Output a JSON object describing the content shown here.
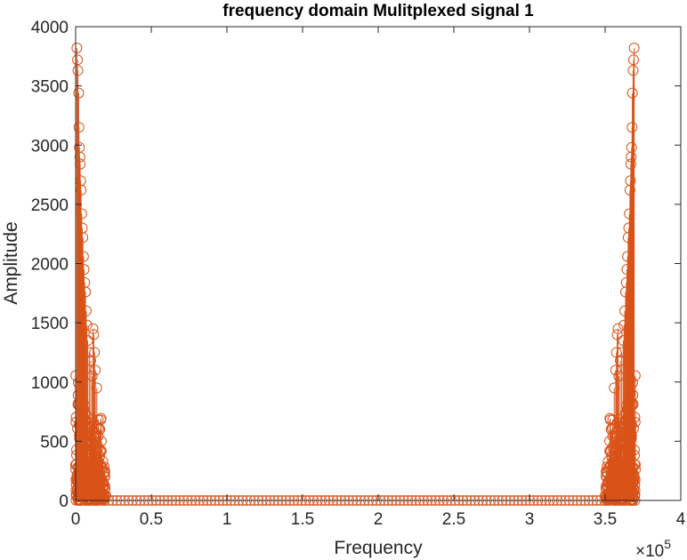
{
  "chart_data": {
    "type": "scatter",
    "title": "frequency domain Mulitplexed signal 1",
    "xlabel": "Frequency",
    "ylabel": "Amplitude",
    "x_multiplier": "×10",
    "x_multiplier_exponent": "5",
    "xlim": [
      0,
      400000
    ],
    "ylim": [
      0,
      4000
    ],
    "x_ticks": [
      0,
      50000,
      100000,
      150000,
      200000,
      250000,
      300000,
      350000,
      400000
    ],
    "x_tick_labels": [
      "0",
      "0.5",
      "1",
      "1.5",
      "2",
      "2.5",
      "3",
      "3.5",
      "4"
    ],
    "y_ticks": [
      0,
      500,
      1000,
      1500,
      2000,
      2500,
      3000,
      3500,
      4000
    ],
    "y_tick_labels": [
      "0",
      "500",
      "1000",
      "1500",
      "2000",
      "2500",
      "3000",
      "3500",
      "4000"
    ],
    "grid": false,
    "marker": "circle",
    "series_color": "#D95319",
    "series": [
      {
        "points": [
          [
            800,
            3820
          ],
          [
            1200,
            3720
          ],
          [
            1500,
            3630
          ],
          [
            2000,
            3440
          ],
          [
            2200,
            3150
          ],
          [
            2500,
            2980
          ],
          [
            2800,
            2900
          ],
          [
            3000,
            2840
          ],
          [
            3300,
            2700
          ],
          [
            3600,
            2620
          ],
          [
            4000,
            2420
          ],
          [
            4400,
            2300
          ],
          [
            4800,
            2220
          ],
          [
            5200,
            2060
          ],
          [
            5600,
            1950
          ],
          [
            6000,
            1840
          ],
          [
            6500,
            1760
          ],
          [
            7000,
            1600
          ],
          [
            7500,
            1480
          ],
          [
            8000,
            1350
          ],
          [
            9000,
            1250
          ],
          [
            10000,
            1180
          ],
          [
            11000,
            1050
          ],
          [
            11500,
            1450
          ],
          [
            12000,
            1400
          ],
          [
            12500,
            1250
          ],
          [
            13000,
            1100
          ],
          [
            14000,
            950
          ],
          [
            15000,
            680
          ],
          [
            16000,
            600
          ],
          [
            17000,
            500
          ],
          [
            18000,
            330
          ],
          [
            19000,
            200
          ],
          [
            20000,
            40
          ]
        ]
      }
    ]
  }
}
